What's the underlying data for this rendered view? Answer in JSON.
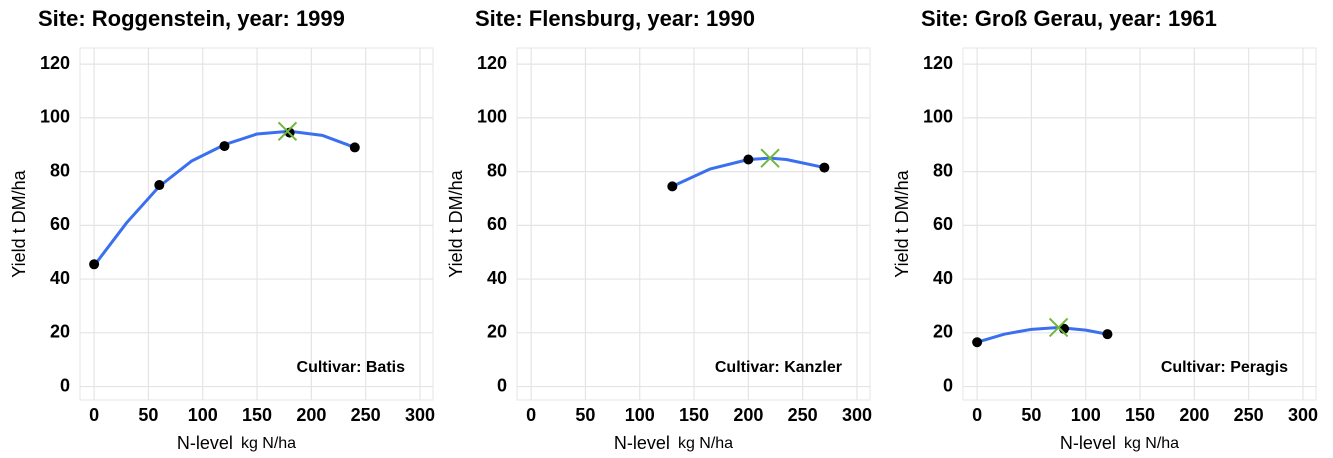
{
  "chart_data": [
    {
      "type": "scatter",
      "title": "Site: Roggenstein, year: 1999",
      "xlabel": "N-level",
      "xlabel_unit": "kg N/ha",
      "ylabel": "Yield t DM/ha",
      "annotation": "Cultivar: Batis",
      "points": {
        "x": [
          0,
          60,
          120,
          180,
          240
        ],
        "y": [
          45.5,
          75,
          89.5,
          94.5,
          89
        ]
      },
      "fit": {
        "x": [
          0,
          30,
          60,
          90,
          120,
          150,
          180,
          210,
          240
        ],
        "y": [
          45,
          61,
          74.5,
          84,
          90,
          94,
          95,
          93.5,
          89
        ]
      },
      "optimum": {
        "x": 178,
        "y": 95
      },
      "point_color": "#000000",
      "fit_color": "#3a6ff0",
      "optimum_color": "#6fb83e",
      "xlim": [
        -13,
        312
      ],
      "ylim": [
        -5,
        126
      ],
      "xticks": [
        0,
        50,
        100,
        150,
        200,
        250,
        300
      ],
      "yticks": [
        0,
        20,
        40,
        60,
        80,
        100,
        120
      ],
      "grid": true
    },
    {
      "type": "scatter",
      "title": "Site: Flensburg, year: 1990",
      "xlabel": "N-level",
      "xlabel_unit": "kg N/ha",
      "ylabel": "Yield t DM/ha",
      "annotation": "Cultivar: Kanzler",
      "points": {
        "x": [
          130,
          200,
          270
        ],
        "y": [
          74.5,
          84.5,
          81.5
        ]
      },
      "fit": {
        "x": [
          130,
          165,
          200,
          220,
          235,
          270
        ],
        "y": [
          74.5,
          81,
          84.5,
          85,
          84.5,
          81.5
        ]
      },
      "optimum": {
        "x": 220,
        "y": 85
      },
      "point_color": "#000000",
      "fit_color": "#3a6ff0",
      "optimum_color": "#6fb83e",
      "xlim": [
        -13,
        312
      ],
      "ylim": [
        -5,
        126
      ],
      "xticks": [
        0,
        50,
        100,
        150,
        200,
        250,
        300
      ],
      "yticks": [
        0,
        20,
        40,
        60,
        80,
        100,
        120
      ],
      "grid": true
    },
    {
      "type": "scatter",
      "title": "Site: Groß Gerau, year: 1961",
      "xlabel": "N-level",
      "xlabel_unit": "kg N/ha",
      "ylabel": "Yield t DM/ha",
      "annotation": "Cultivar: Peragis",
      "points": {
        "x": [
          0,
          80,
          120
        ],
        "y": [
          16.5,
          21.5,
          19.5
        ]
      },
      "fit": {
        "x": [
          0,
          25,
          50,
          75,
          100,
          120
        ],
        "y": [
          16.5,
          19.5,
          21.3,
          22,
          21,
          19.5
        ]
      },
      "optimum": {
        "x": 75,
        "y": 22
      },
      "point_color": "#000000",
      "fit_color": "#3a6ff0",
      "optimum_color": "#6fb83e",
      "xlim": [
        -13,
        312
      ],
      "ylim": [
        -5,
        126
      ],
      "xticks": [
        0,
        50,
        100,
        150,
        200,
        250,
        300
      ],
      "yticks": [
        0,
        20,
        40,
        60,
        80,
        100,
        120
      ],
      "grid": true
    }
  ]
}
